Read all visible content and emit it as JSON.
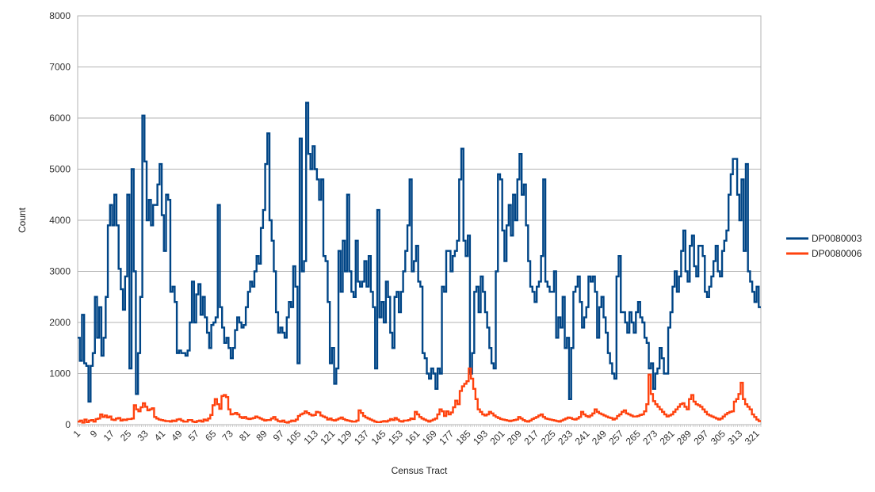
{
  "chart_data": {
    "type": "line",
    "line_style": "step",
    "xlabel": "Census Tract",
    "ylabel": "Count",
    "ylim": [
      0,
      8000
    ],
    "yticks": [
      0,
      1000,
      2000,
      3000,
      4000,
      5000,
      6000,
      7000,
      8000
    ],
    "x_range": [
      1,
      323
    ],
    "x_tick_labels": [
      1,
      9,
      17,
      25,
      33,
      41,
      49,
      57,
      65,
      73,
      81,
      89,
      97,
      105,
      113,
      121,
      129,
      137,
      145,
      153,
      161,
      169,
      177,
      185,
      193,
      201,
      209,
      217,
      225,
      233,
      241,
      249,
      257,
      265,
      273,
      281,
      289,
      297,
      305,
      313,
      321
    ],
    "grid": "horizontal",
    "legend_position": "right",
    "series": [
      {
        "name": "DP0080003",
        "color": "#004586",
        "values": [
          1700,
          1250,
          2150,
          1200,
          1150,
          450,
          1150,
          1400,
          2500,
          1700,
          2300,
          1350,
          1700,
          2500,
          3900,
          4300,
          3900,
          4500,
          3900,
          3050,
          2650,
          2250,
          2900,
          4500,
          1100,
          5000,
          3000,
          600,
          1400,
          2500,
          6050,
          5150,
          4000,
          4400,
          3900,
          4300,
          4300,
          4700,
          5100,
          4100,
          3400,
          4500,
          4400,
          2600,
          2700,
          2400,
          1400,
          1450,
          1400,
          1400,
          1350,
          1450,
          2000,
          2800,
          2000,
          2550,
          2750,
          2150,
          2500,
          2100,
          1800,
          1500,
          1950,
          2000,
          2100,
          4300,
          2300,
          1900,
          1600,
          1700,
          1500,
          1300,
          1500,
          1850,
          2100,
          2000,
          1900,
          1950,
          2300,
          2600,
          2800,
          2700,
          3000,
          3300,
          3150,
          3850,
          4200,
          5100,
          5700,
          4000,
          3600,
          3000,
          2200,
          1800,
          1900,
          1800,
          1700,
          2100,
          2400,
          2300,
          3100,
          2700,
          1200,
          5600,
          3000,
          3200,
          6300,
          5300,
          5000,
          5450,
          5000,
          4800,
          4400,
          4800,
          3300,
          3200,
          2400,
          1200,
          1500,
          800,
          1100,
          3400,
          2600,
          3600,
          3000,
          4500,
          3000,
          2600,
          2500,
          3600,
          2800,
          2700,
          2800,
          3200,
          2700,
          3300,
          2600,
          2300,
          1100,
          4200,
          2100,
          2400,
          2000,
          2800,
          2500,
          1800,
          1500,
          2500,
          2600,
          2200,
          2600,
          3000,
          3400,
          3900,
          4800,
          3000,
          3200,
          3500,
          2800,
          2700,
          1400,
          1300,
          1000,
          900,
          1100,
          1000,
          700,
          1100,
          1000,
          2700,
          2600,
          3400,
          3400,
          3000,
          3300,
          3400,
          3600,
          4800,
          5400,
          3600,
          3300,
          3700,
          1000,
          1400,
          2600,
          2700,
          2200,
          2900,
          2600,
          2200,
          1900,
          1500,
          1200,
          1100,
          3000,
          4900,
          4800,
          3800,
          3200,
          3900,
          4300,
          3700,
          4500,
          4000,
          4800,
          5300,
          4500,
          4700,
          3900,
          3200,
          2700,
          2600,
          2400,
          2700,
          2800,
          3300,
          4800,
          2800,
          2700,
          2600,
          2600,
          3000,
          1700,
          2100,
          1900,
          2500,
          1500,
          1700,
          500,
          1500,
          2600,
          2700,
          2900,
          2400,
          1900,
          2100,
          2300,
          2900,
          2800,
          2900,
          2600,
          1700,
          2300,
          2500,
          2100,
          1800,
          1400,
          1200,
          1000,
          900,
          2900,
          3300,
          2200,
          2200,
          2000,
          1800,
          2200,
          2000,
          1800,
          2200,
          2400,
          2100,
          2000,
          1700,
          1600,
          1100,
          1200,
          700,
          1000,
          1100,
          1500,
          1300,
          1000,
          1000,
          1900,
          2200,
          2700,
          3000,
          2600,
          2900,
          3400,
          3800,
          3000,
          2800,
          3500,
          3700,
          3100,
          2900,
          3500,
          3500,
          3300,
          2600,
          2500,
          2700,
          2900,
          3200,
          3500,
          3000,
          2900,
          3400,
          3600,
          3800,
          4500,
          4900,
          5200,
          5200,
          4500,
          4000,
          4800,
          3400,
          5100,
          3000,
          2800,
          2600,
          2400,
          2700,
          2300
        ]
      },
      {
        "name": "DP0080006",
        "color": "#ff420e",
        "values": [
          60,
          80,
          40,
          100,
          50,
          80,
          90,
          60,
          110,
          120,
          200,
          150,
          180,
          140,
          160,
          100,
          90,
          120,
          130,
          80,
          100,
          90,
          110,
          110,
          120,
          380,
          300,
          260,
          340,
          420,
          350,
          280,
          300,
          320,
          150,
          120,
          100,
          90,
          80,
          70,
          70,
          60,
          80,
          70,
          100,
          110,
          80,
          60,
          60,
          90,
          90,
          60,
          50,
          70,
          80,
          60,
          100,
          80,
          120,
          190,
          380,
          500,
          400,
          310,
          560,
          580,
          540,
          300,
          200,
          210,
          230,
          200,
          150,
          130,
          150,
          120,
          110,
          120,
          130,
          160,
          140,
          120,
          100,
          80,
          90,
          90,
          120,
          150,
          100,
          70,
          60,
          80,
          50,
          40,
          60,
          80,
          70,
          100,
          170,
          200,
          220,
          260,
          230,
          200,
          180,
          190,
          250,
          240,
          180,
          160,
          140,
          100,
          120,
          90,
          80,
          100,
          120,
          140,
          110,
          90,
          80,
          70,
          60,
          60,
          80,
          280,
          230,
          170,
          140,
          120,
          100,
          80,
          60,
          50,
          50,
          60,
          70,
          60,
          80,
          110,
          90,
          130,
          100,
          70,
          60,
          80,
          80,
          90,
          120,
          110,
          250,
          200,
          150,
          120,
          100,
          80,
          60,
          80,
          100,
          120,
          200,
          300,
          260,
          170,
          260,
          200,
          240,
          340,
          470,
          400,
          660,
          750,
          800,
          850,
          1100,
          900,
          700,
          500,
          300,
          250,
          200,
          180,
          200,
          250,
          220,
          180,
          150,
          130,
          110,
          100,
          90,
          80,
          70,
          80,
          90,
          100,
          150,
          120,
          90,
          70,
          60,
          80,
          110,
          130,
          150,
          180,
          200,
          150,
          120,
          110,
          100,
          90,
          80,
          70,
          60,
          80,
          100,
          120,
          140,
          130,
          110,
          100,
          120,
          150,
          250,
          200,
          170,
          150,
          180,
          220,
          300,
          250,
          220,
          200,
          180,
          160,
          140,
          130,
          100,
          120,
          170,
          200,
          250,
          280,
          220,
          200,
          180,
          160,
          160,
          170,
          190,
          200,
          260,
          400,
          980,
          600,
          460,
          400,
          350,
          300,
          250,
          200,
          160,
          180,
          200,
          250,
          300,
          350,
          400,
          420,
          350,
          300,
          500,
          580,
          450,
          400,
          380,
          350,
          300,
          250,
          200,
          180,
          160,
          140,
          120,
          100,
          120,
          160,
          200,
          230,
          250,
          260,
          450,
          500,
          600,
          820,
          500,
          400,
          350,
          300,
          200,
          150,
          100,
          70
        ]
      }
    ]
  }
}
